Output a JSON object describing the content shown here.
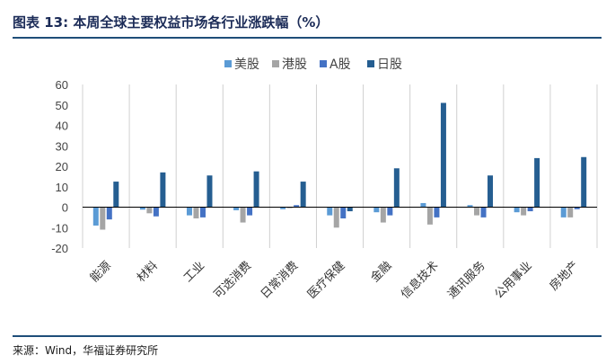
{
  "header": {
    "title": "图表 13:  本周全球主要权益市场各行业涨跌幅（%）"
  },
  "footer": {
    "source": "来源：Wind，华福证券研究所"
  },
  "colors": {
    "rule": "#1f4e79",
    "grid": "#d0d0d0",
    "zero_line": "#000000"
  },
  "chart_data": {
    "type": "bar",
    "title": "",
    "xlabel": "",
    "ylabel": "",
    "ylim": [
      -20,
      60
    ],
    "yticks": [
      -20,
      -10,
      0,
      10,
      20,
      30,
      40,
      50,
      60
    ],
    "grid": "vertical separators between categories",
    "legend_position": "top-center",
    "categories": [
      "能源",
      "材料",
      "工业",
      "可选消费",
      "日常消费",
      "医疗保健",
      "金融",
      "信息技术",
      "通讯服务",
      "公用事业",
      "房地产"
    ],
    "series": [
      {
        "name": "美股",
        "color": "#5b9bd5",
        "values": [
          -9.0,
          -1.2,
          -4.0,
          -1.5,
          -1.0,
          -4.0,
          -2.5,
          2.0,
          1.0,
          -2.5,
          -5.0
        ]
      },
      {
        "name": "港股",
        "color": "#a5a5a5",
        "values": [
          -11.0,
          -3.0,
          -5.5,
          -7.5,
          -0.5,
          -10.0,
          -7.5,
          -8.5,
          -4.0,
          -4.0,
          -5.0
        ]
      },
      {
        "name": "A股",
        "color": "#4472c4",
        "values": [
          -6.0,
          -4.5,
          -5.0,
          -4.0,
          1.0,
          -5.5,
          -4.0,
          -5.0,
          -5.0,
          -2.0,
          -1.0
        ]
      },
      {
        "name": "日股",
        "color": "#255e91",
        "values": [
          12.5,
          17.0,
          15.5,
          17.5,
          12.5,
          -2.0,
          19.0,
          51.0,
          15.5,
          24.0,
          24.5
        ]
      }
    ]
  }
}
